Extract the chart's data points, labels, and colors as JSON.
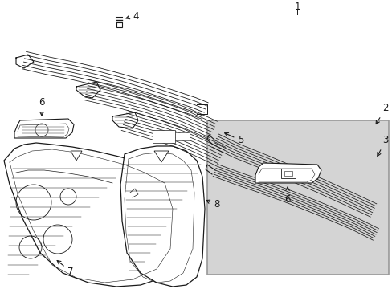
{
  "bg_color": "#ffffff",
  "line_color": "#1a1a1a",
  "box_color": "#d4d4d4",
  "box_edge": "#999999",
  "font_size": 8.5
}
